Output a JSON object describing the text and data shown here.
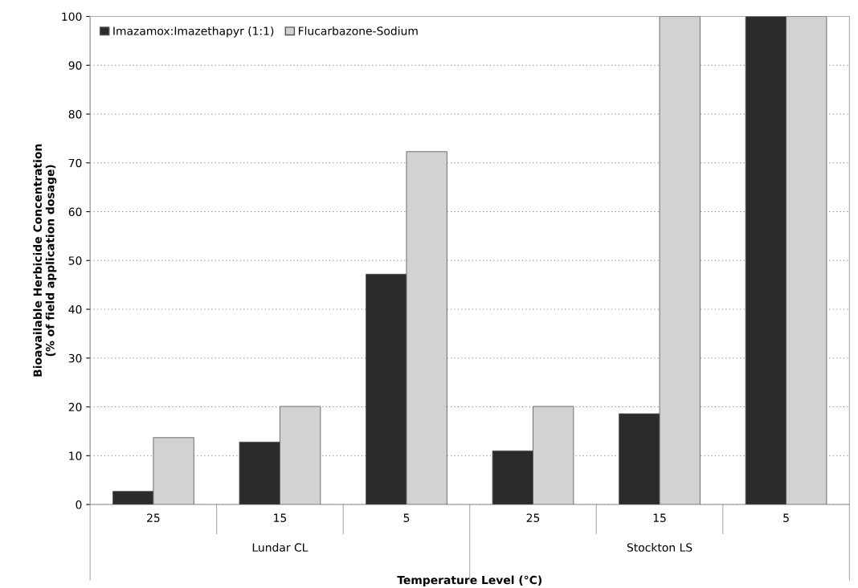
{
  "chart_data": {
    "type": "bar",
    "xlabel": "Temperature Level (°C)",
    "ylabel": "Bioavailable Herbicide Concentration\n(% of field application dosage)",
    "categories": [
      "25",
      "15",
      "5",
      "25",
      "15",
      "5"
    ],
    "series": [
      {
        "name": "Imazamox:Imazethapyr (1:1)",
        "color": "#2b2b2b",
        "values": [
          2.7,
          12.8,
          47.2,
          11.0,
          18.6,
          100
        ]
      },
      {
        "name": "Flucarbazone-Sodium",
        "color": "#d2d2d2",
        "values": [
          13.7,
          20.1,
          72.3,
          20.1,
          100,
          100
        ]
      }
    ],
    "annotations": [
      "Lundar CL",
      "Stockton LS"
    ],
    "ylim": [
      0,
      100
    ],
    "yticks": [
      0,
      10,
      20,
      30,
      40,
      50,
      60,
      70,
      80,
      90,
      100
    ],
    "grid": "y",
    "legend": "top left"
  }
}
